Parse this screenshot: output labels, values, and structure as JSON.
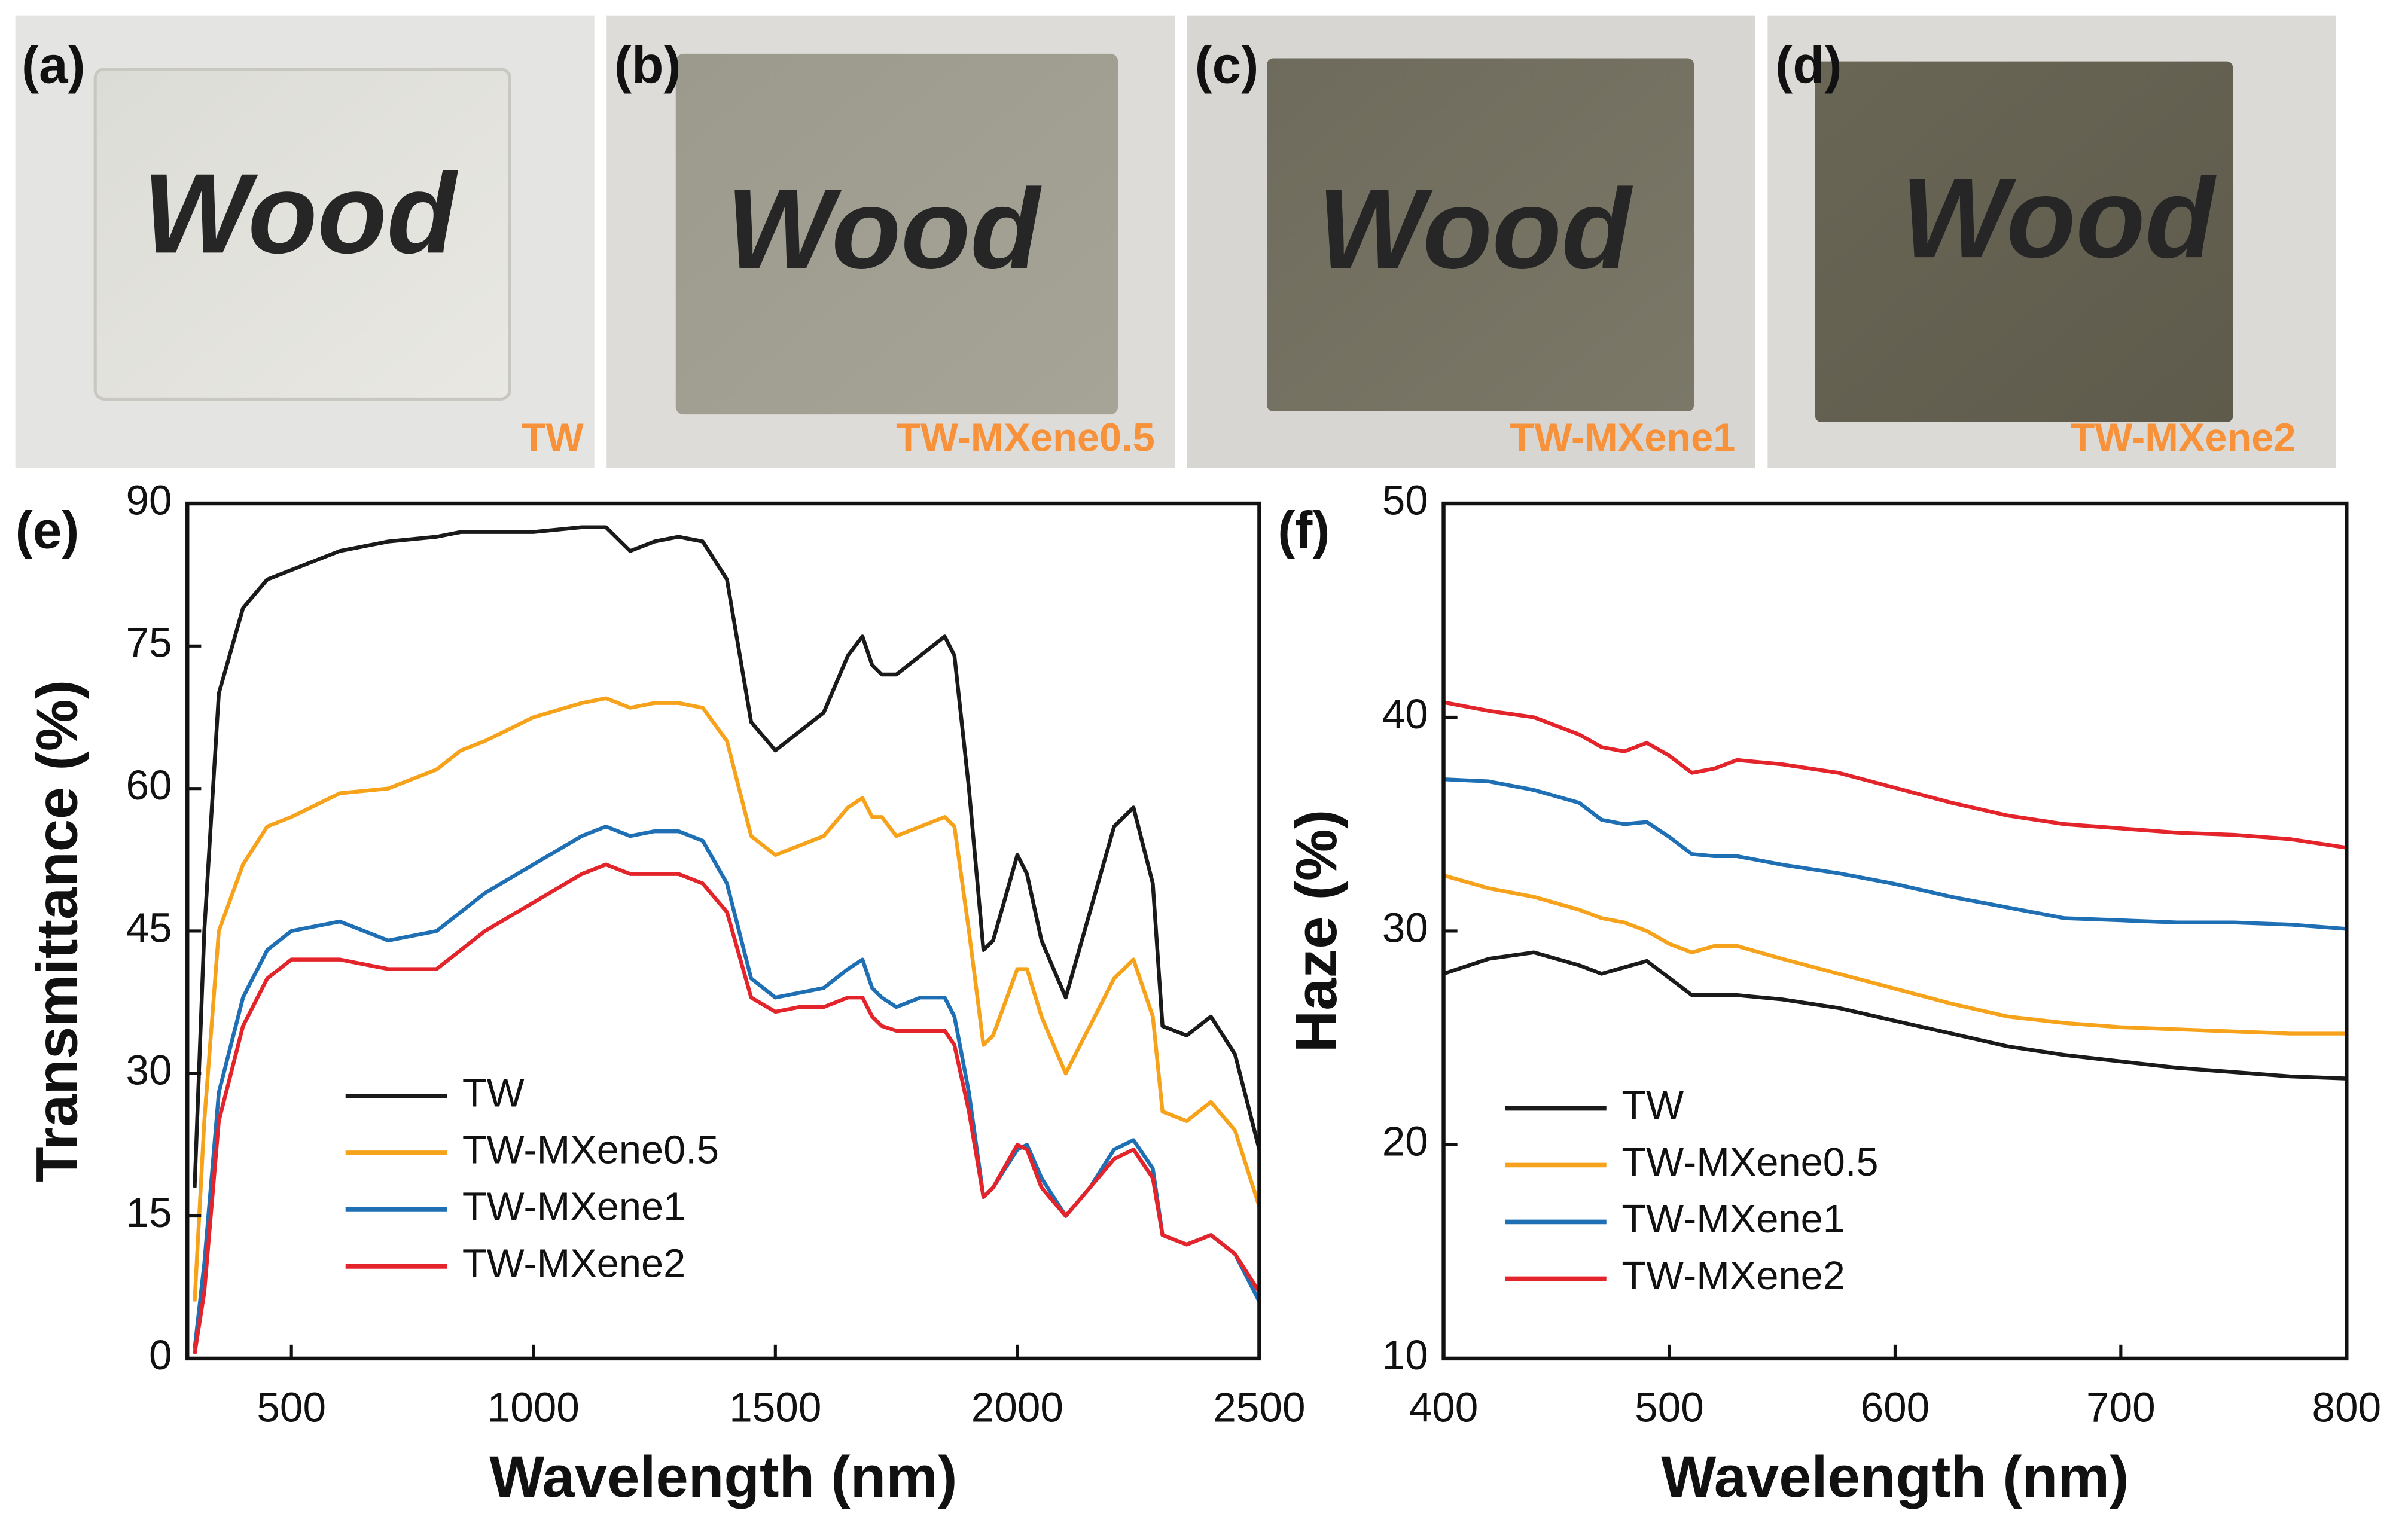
{
  "panels": [
    {
      "label": "(a)",
      "text": "Wood",
      "sample": "TW"
    },
    {
      "label": "(b)",
      "text": "Wood",
      "sample": "TW-MXene0.5"
    },
    {
      "label": "(c)",
      "text": "Wood",
      "sample": "TW-MXene1"
    },
    {
      "label": "(d)",
      "text": "Wood",
      "sample": "TW-MXene2"
    }
  ],
  "chart_data": [
    {
      "type": "line",
      "panel_label": "(e)",
      "xlabel": "Wavelength (nm)",
      "ylabel": "Transmittance (%)",
      "xlim": [
        285,
        2500
      ],
      "xticks": [
        500,
        1000,
        1500,
        2000,
        2500
      ],
      "ylim": [
        0,
        90
      ],
      "yticks": [
        0,
        15,
        30,
        45,
        60,
        75,
        90
      ],
      "legend": "lower left",
      "x": [
        300,
        320,
        350,
        400,
        450,
        500,
        600,
        700,
        800,
        850,
        900,
        1000,
        1100,
        1150,
        1200,
        1250,
        1300,
        1350,
        1400,
        1450,
        1500,
        1550,
        1600,
        1650,
        1680,
        1700,
        1720,
        1750,
        1800,
        1850,
        1870,
        1900,
        1930,
        1950,
        2000,
        2020,
        2050,
        2100,
        2150,
        2200,
        2240,
        2280,
        2300,
        2350,
        2400,
        2450,
        2500
      ],
      "series": [
        {
          "name": "TW",
          "color": "#1a1a1a",
          "values": [
            18,
            45,
            70,
            79,
            82,
            83,
            85,
            86,
            86.5,
            87,
            87,
            87,
            87.5,
            87.5,
            85,
            86,
            86.5,
            86,
            82,
            67,
            64,
            66,
            68,
            74,
            76,
            73,
            72,
            72,
            74,
            76,
            74,
            60,
            43,
            44,
            53,
            51,
            44,
            38,
            47,
            56,
            58,
            50,
            35,
            34,
            36,
            32,
            22
          ]
        },
        {
          "name": "TW-MXene0.5",
          "color": "#f7a21b",
          "values": [
            6,
            25,
            45,
            52,
            56,
            57,
            59.5,
            60,
            62,
            64,
            65,
            67.5,
            69,
            69.5,
            68.5,
            69,
            69,
            68.5,
            65,
            55,
            53,
            54,
            55,
            58,
            59,
            57,
            57,
            55,
            56,
            57,
            56,
            45,
            33,
            34,
            41,
            41,
            36,
            30,
            35,
            40,
            42,
            36,
            26,
            25,
            27,
            24,
            16
          ]
        },
        {
          "name": "TW-MXene1",
          "color": "#1f6fb5",
          "values": [
            1,
            10,
            28,
            38,
            43,
            45,
            46,
            44,
            45,
            47,
            49,
            52,
            55,
            56,
            55,
            55.5,
            55.5,
            54.5,
            50,
            40,
            38,
            38.5,
            39,
            41,
            42,
            39,
            38,
            37,
            38,
            38,
            36,
            28,
            17,
            18,
            22,
            22.5,
            19,
            15,
            18,
            22,
            23,
            20,
            13,
            12,
            13,
            11,
            6
          ]
        },
        {
          "name": "TW-MXene2",
          "color": "#e3242b",
          "values": [
            0.5,
            7,
            25,
            35,
            40,
            42,
            42,
            41,
            41,
            43,
            45,
            48,
            51,
            52,
            51,
            51,
            51,
            50,
            47,
            38,
            36.5,
            37,
            37,
            38,
            38,
            36,
            35,
            34.5,
            34.5,
            34.5,
            33,
            26,
            17,
            18,
            22.5,
            22,
            18,
            15,
            18,
            21,
            22,
            19,
            13,
            12,
            13,
            11,
            7
          ]
        }
      ]
    },
    {
      "type": "line",
      "panel_label": "(f)",
      "xlabel": "Wavelength (nm)",
      "ylabel": "Haze (%)",
      "xlim": [
        400,
        800
      ],
      "xticks": [
        400,
        500,
        600,
        700,
        800
      ],
      "ylim": [
        10,
        50
      ],
      "yticks": [
        10,
        20,
        30,
        40,
        50
      ],
      "legend": "lower left",
      "x": [
        400,
        420,
        440,
        460,
        470,
        480,
        490,
        500,
        510,
        520,
        530,
        550,
        575,
        600,
        625,
        650,
        675,
        700,
        725,
        750,
        775,
        800
      ],
      "series": [
        {
          "name": "TW",
          "color": "#1a1a1a",
          "values": [
            28,
            28.7,
            29,
            28.4,
            28,
            28.3,
            28.6,
            27.8,
            27,
            27,
            27,
            26.8,
            26.4,
            25.8,
            25.2,
            24.6,
            24.2,
            23.9,
            23.6,
            23.4,
            23.2,
            23.1
          ]
        },
        {
          "name": "TW-MXene0.5",
          "color": "#f7a21b",
          "values": [
            32.6,
            32,
            31.6,
            31,
            30.6,
            30.4,
            30,
            29.4,
            29,
            29.3,
            29.3,
            28.7,
            28,
            27.3,
            26.6,
            26,
            25.7,
            25.5,
            25.4,
            25.3,
            25.2,
            25.2
          ]
        },
        {
          "name": "TW-MXene1",
          "color": "#1f6fb5",
          "values": [
            37.1,
            37,
            36.6,
            36,
            35.2,
            35,
            35.1,
            34.4,
            33.6,
            33.5,
            33.5,
            33.1,
            32.7,
            32.2,
            31.6,
            31.1,
            30.6,
            30.5,
            30.4,
            30.4,
            30.3,
            30.1
          ]
        },
        {
          "name": "TW-MXene2",
          "color": "#e3242b",
          "values": [
            40.7,
            40.3,
            40,
            39.2,
            38.6,
            38.4,
            38.8,
            38.2,
            37.4,
            37.6,
            38,
            37.8,
            37.4,
            36.7,
            36,
            35.4,
            35,
            34.8,
            34.6,
            34.5,
            34.3,
            33.9
          ]
        }
      ]
    }
  ]
}
